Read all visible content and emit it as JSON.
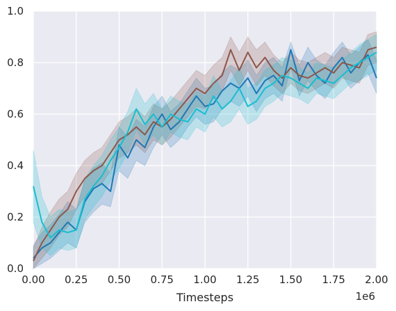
{
  "chart_data": {
    "type": "line",
    "title": "",
    "xlabel": "Timesteps",
    "ylabel": "",
    "x_offset_label": "1e6",
    "xlim": [
      0,
      2.0
    ],
    "ylim": [
      0,
      1.0
    ],
    "x_ticks": [
      "0.00",
      "0.25",
      "0.50",
      "0.75",
      "1.00",
      "1.25",
      "1.50",
      "1.75",
      "2.00"
    ],
    "y_ticks": [
      "0.0",
      "0.2",
      "0.4",
      "0.6",
      "0.8",
      "1.0"
    ],
    "grid": true,
    "legend": "none",
    "background_color": "#eaeaf2",
    "x": [
      0.0,
      0.05,
      0.1,
      0.15,
      0.2,
      0.25,
      0.3,
      0.35,
      0.4,
      0.45,
      0.5,
      0.55,
      0.6,
      0.65,
      0.7,
      0.75,
      0.8,
      0.85,
      0.9,
      0.95,
      1.0,
      1.05,
      1.1,
      1.15,
      1.2,
      1.25,
      1.3,
      1.35,
      1.4,
      1.45,
      1.5,
      1.55,
      1.6,
      1.65,
      1.7,
      1.75,
      1.8,
      1.85,
      1.9,
      1.95,
      2.0
    ],
    "series": [
      {
        "color": "#1f77b4",
        "values": [
          0.04,
          0.08,
          0.1,
          0.14,
          0.18,
          0.15,
          0.26,
          0.31,
          0.33,
          0.3,
          0.48,
          0.43,
          0.5,
          0.47,
          0.55,
          0.6,
          0.54,
          0.57,
          0.62,
          0.67,
          0.63,
          0.64,
          0.69,
          0.72,
          0.7,
          0.74,
          0.68,
          0.73,
          0.75,
          0.71,
          0.85,
          0.73,
          0.8,
          0.75,
          0.72,
          0.78,
          0.82,
          0.76,
          0.8,
          0.83,
          0.74
        ],
        "lower": [
          0.0,
          0.02,
          0.04,
          0.07,
          0.1,
          0.08,
          0.18,
          0.22,
          0.25,
          0.24,
          0.38,
          0.35,
          0.42,
          0.4,
          0.47,
          0.52,
          0.47,
          0.5,
          0.55,
          0.59,
          0.56,
          0.57,
          0.62,
          0.65,
          0.63,
          0.67,
          0.61,
          0.66,
          0.68,
          0.65,
          0.78,
          0.67,
          0.73,
          0.69,
          0.66,
          0.71,
          0.75,
          0.7,
          0.73,
          0.76,
          0.68
        ],
        "upper": [
          0.09,
          0.14,
          0.17,
          0.21,
          0.26,
          0.23,
          0.34,
          0.39,
          0.41,
          0.37,
          0.55,
          0.51,
          0.58,
          0.55,
          0.63,
          0.67,
          0.61,
          0.64,
          0.69,
          0.74,
          0.7,
          0.71,
          0.76,
          0.79,
          0.77,
          0.81,
          0.75,
          0.8,
          0.82,
          0.78,
          0.88,
          0.79,
          0.86,
          0.81,
          0.79,
          0.84,
          0.88,
          0.83,
          0.86,
          0.89,
          0.81
        ]
      },
      {
        "color": "#8c564b",
        "values": [
          0.03,
          0.1,
          0.15,
          0.2,
          0.23,
          0.3,
          0.35,
          0.38,
          0.4,
          0.45,
          0.5,
          0.52,
          0.55,
          0.52,
          0.57,
          0.55,
          0.58,
          0.62,
          0.66,
          0.7,
          0.68,
          0.72,
          0.75,
          0.85,
          0.77,
          0.84,
          0.78,
          0.82,
          0.77,
          0.74,
          0.78,
          0.75,
          0.74,
          0.76,
          0.78,
          0.76,
          0.8,
          0.79,
          0.78,
          0.85,
          0.86
        ],
        "lower": [
          0.0,
          0.04,
          0.08,
          0.13,
          0.16,
          0.23,
          0.28,
          0.31,
          0.33,
          0.38,
          0.43,
          0.45,
          0.48,
          0.45,
          0.5,
          0.48,
          0.51,
          0.55,
          0.59,
          0.63,
          0.62,
          0.66,
          0.69,
          0.77,
          0.71,
          0.77,
          0.71,
          0.75,
          0.71,
          0.68,
          0.72,
          0.69,
          0.68,
          0.7,
          0.72,
          0.7,
          0.74,
          0.73,
          0.72,
          0.79,
          0.8
        ],
        "upper": [
          0.08,
          0.16,
          0.22,
          0.27,
          0.3,
          0.37,
          0.42,
          0.45,
          0.47,
          0.52,
          0.57,
          0.59,
          0.62,
          0.59,
          0.64,
          0.62,
          0.65,
          0.69,
          0.73,
          0.77,
          0.75,
          0.79,
          0.82,
          0.9,
          0.84,
          0.9,
          0.85,
          0.88,
          0.83,
          0.8,
          0.84,
          0.81,
          0.8,
          0.82,
          0.84,
          0.82,
          0.86,
          0.85,
          0.84,
          0.91,
          0.92
        ]
      },
      {
        "color": "#17becf",
        "values": [
          0.32,
          0.18,
          0.12,
          0.15,
          0.14,
          0.15,
          0.27,
          0.32,
          0.36,
          0.42,
          0.47,
          0.53,
          0.62,
          0.56,
          0.6,
          0.55,
          0.6,
          0.58,
          0.57,
          0.62,
          0.6,
          0.67,
          0.62,
          0.65,
          0.7,
          0.63,
          0.65,
          0.7,
          0.72,
          0.75,
          0.74,
          0.72,
          0.7,
          0.74,
          0.73,
          0.72,
          0.75,
          0.78,
          0.8,
          0.82,
          0.84
        ],
        "lower": [
          0.18,
          0.08,
          0.05,
          0.08,
          0.07,
          0.08,
          0.19,
          0.24,
          0.28,
          0.34,
          0.39,
          0.45,
          0.54,
          0.48,
          0.52,
          0.48,
          0.53,
          0.51,
          0.5,
          0.55,
          0.53,
          0.59,
          0.55,
          0.57,
          0.62,
          0.56,
          0.58,
          0.63,
          0.65,
          0.68,
          0.67,
          0.66,
          0.64,
          0.68,
          0.67,
          0.66,
          0.69,
          0.72,
          0.73,
          0.75,
          0.77
        ],
        "upper": [
          0.46,
          0.28,
          0.2,
          0.23,
          0.22,
          0.23,
          0.35,
          0.4,
          0.44,
          0.5,
          0.55,
          0.61,
          0.7,
          0.64,
          0.68,
          0.62,
          0.67,
          0.65,
          0.64,
          0.69,
          0.67,
          0.75,
          0.69,
          0.73,
          0.78,
          0.7,
          0.72,
          0.77,
          0.79,
          0.82,
          0.81,
          0.78,
          0.76,
          0.8,
          0.79,
          0.78,
          0.81,
          0.84,
          0.87,
          0.89,
          0.91
        ]
      }
    ]
  }
}
